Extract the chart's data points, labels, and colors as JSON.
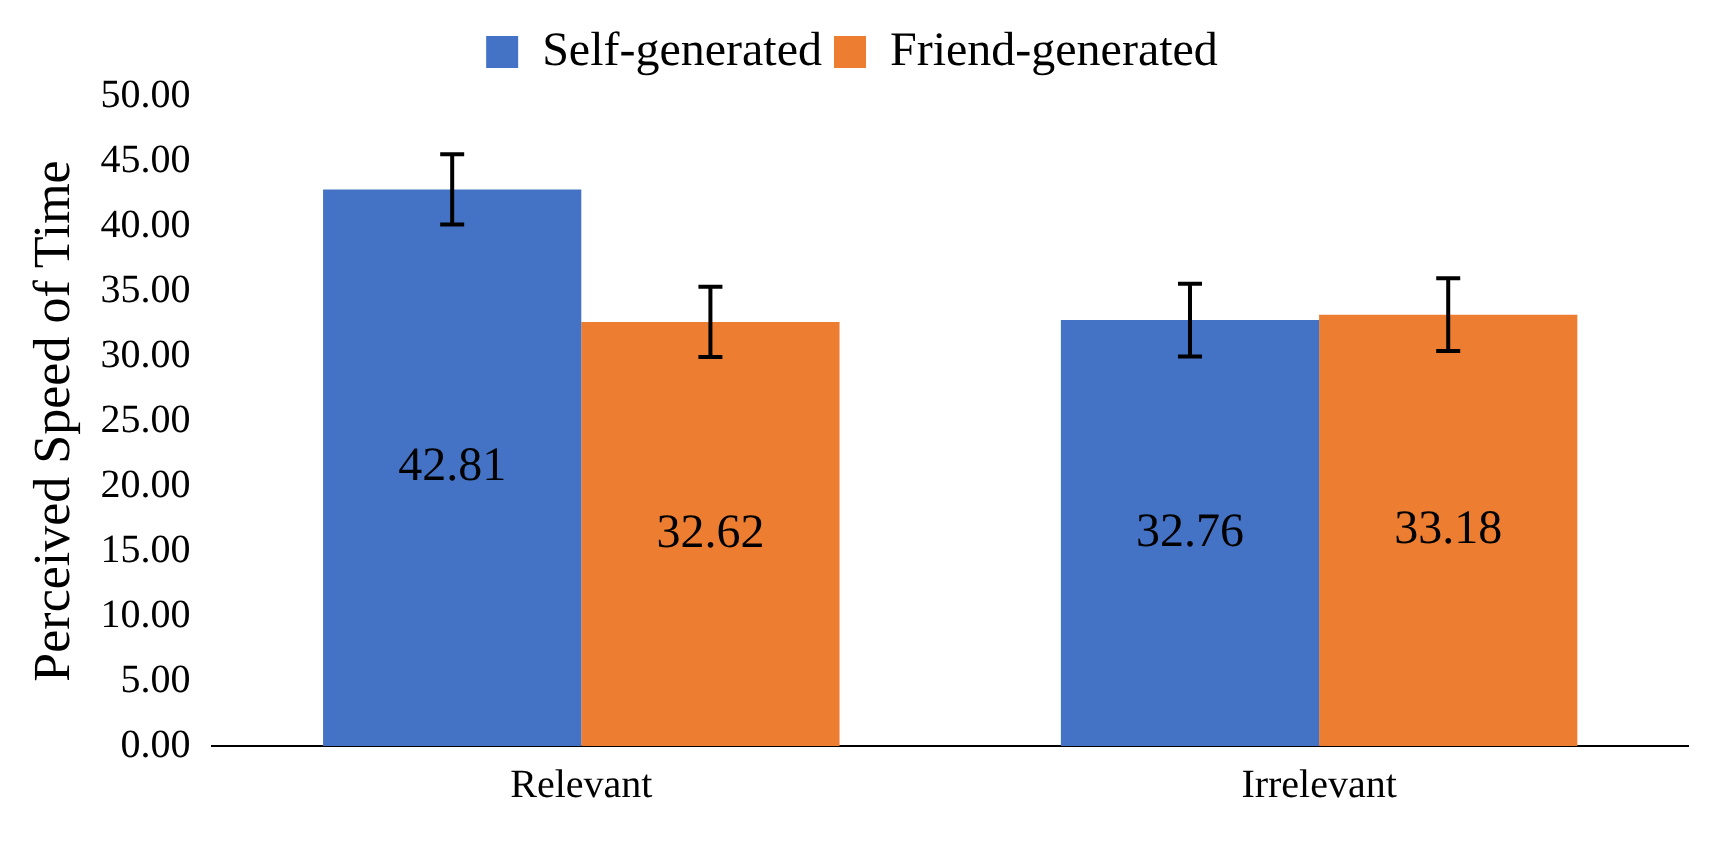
{
  "chart_data": {
    "type": "bar",
    "ylabel": "Perceived Speed of Time",
    "categories": [
      "Relevant",
      "Irrelevant"
    ],
    "series": [
      {
        "name": "Self-generated",
        "color": "#4472c4",
        "values": [
          42.81,
          32.76
        ],
        "errors": [
          2.7,
          2.8
        ]
      },
      {
        "name": "Friend-generated",
        "color": "#ed7d31",
        "values": [
          32.62,
          33.18
        ],
        "errors": [
          2.7,
          2.8
        ]
      }
    ],
    "ylim": [
      0,
      50
    ],
    "yticks": [
      {
        "value": 0,
        "label": "0.00"
      },
      {
        "value": 5,
        "label": "5.00"
      },
      {
        "value": 10,
        "label": "10.00"
      },
      {
        "value": 15,
        "label": "15.00"
      },
      {
        "value": 20,
        "label": "20.00"
      },
      {
        "value": 25,
        "label": "25.00"
      },
      {
        "value": 30,
        "label": "30.00"
      },
      {
        "value": 35,
        "label": "35.00"
      },
      {
        "value": 40,
        "label": "40.00"
      },
      {
        "value": 45,
        "label": "45.00"
      },
      {
        "value": 50,
        "label": "50.00"
      }
    ],
    "grid": false,
    "legend": "top",
    "data_labels": true
  }
}
